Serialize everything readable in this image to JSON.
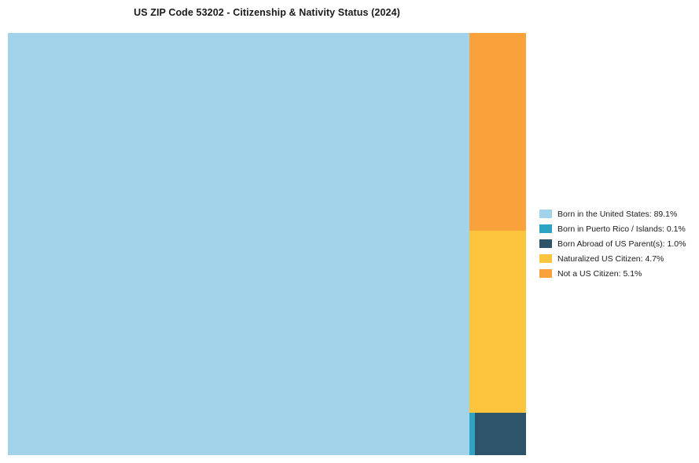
{
  "chart_data": {
    "type": "treemap",
    "title": "US ZIP Code 53202 - Citizenship & Nativity Status (2024)",
    "legend_position": "right",
    "units": "%",
    "series": [
      {
        "label": "Born in the United States",
        "value": 89.1,
        "color": "#a3d3eb"
      },
      {
        "label": "Born in Puerto Rico / Islands",
        "value": 0.1,
        "color": "#2fa3c2"
      },
      {
        "label": "Born Abroad of US Parent(s)",
        "value": 1.0,
        "color": "#2d5468"
      },
      {
        "label": "Naturalized US Citizen",
        "value": 4.7,
        "color": "#fdc53e"
      },
      {
        "label": "Not a US Citizen",
        "value": 5.1,
        "color": "#f9a13b"
      }
    ],
    "legend": [
      "Born in the United States: 89.1%",
      "Born in Puerto Rico / Islands: 0.1%",
      "Born Abroad of US Parent(s): 1.0%",
      "Naturalized US Citizen: 4.7%",
      "Not a US Citizen: 5.1%"
    ]
  }
}
